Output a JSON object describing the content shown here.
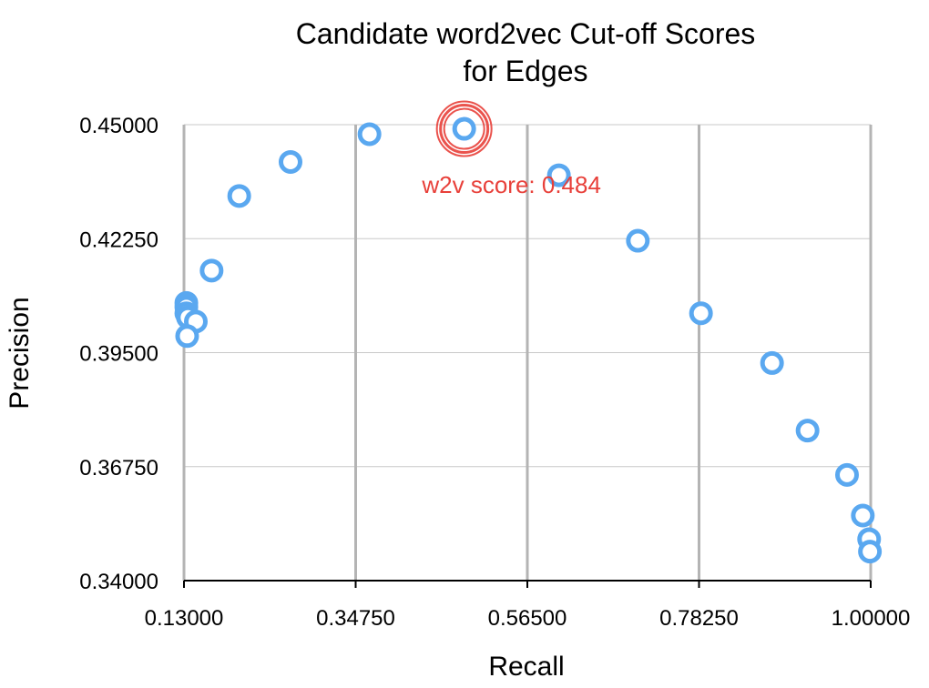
{
  "chart_data": {
    "type": "scatter",
    "title_line1": "Candidate word2vec Cut-off Scores",
    "title_line2": "for Edges",
    "xlabel": "Recall",
    "ylabel": "Precision",
    "xlim": [
      0.13,
      1.0
    ],
    "ylim": [
      0.34,
      0.45
    ],
    "xticks": [
      "0.13000",
      "0.34750",
      "0.56500",
      "0.78250",
      "1.00000"
    ],
    "yticks": [
      "0.34000",
      "0.36750",
      "0.39500",
      "0.42250",
      "0.45000"
    ],
    "grid": "vertical and horizontal",
    "marker_color": "#5aa8f0",
    "highlight_color": "#e8403a",
    "series": [
      {
        "points": [
          {
            "x": 0.133,
            "y": 0.407
          },
          {
            "x": 0.133,
            "y": 0.406
          },
          {
            "x": 0.133,
            "y": 0.4045
          },
          {
            "x": 0.135,
            "y": 0.4035
          },
          {
            "x": 0.145,
            "y": 0.4025
          },
          {
            "x": 0.134,
            "y": 0.399
          },
          {
            "x": 0.165,
            "y": 0.4148
          },
          {
            "x": 0.2,
            "y": 0.4328
          },
          {
            "x": 0.265,
            "y": 0.441
          },
          {
            "x": 0.365,
            "y": 0.4477
          },
          {
            "x": 0.485,
            "y": 0.449
          },
          {
            "x": 0.605,
            "y": 0.4378
          },
          {
            "x": 0.705,
            "y": 0.422
          },
          {
            "x": 0.785,
            "y": 0.4045
          },
          {
            "x": 0.875,
            "y": 0.3925
          },
          {
            "x": 0.92,
            "y": 0.3762
          },
          {
            "x": 0.97,
            "y": 0.3655
          },
          {
            "x": 0.99,
            "y": 0.3557
          },
          {
            "x": 0.998,
            "y": 0.35
          },
          {
            "x": 0.999,
            "y": 0.347
          }
        ]
      }
    ],
    "highlight": {
      "x": 0.485,
      "y": 0.449
    },
    "annotation": {
      "text": "w2v score: 0.484",
      "x": 0.545,
      "y": 0.4335
    }
  }
}
